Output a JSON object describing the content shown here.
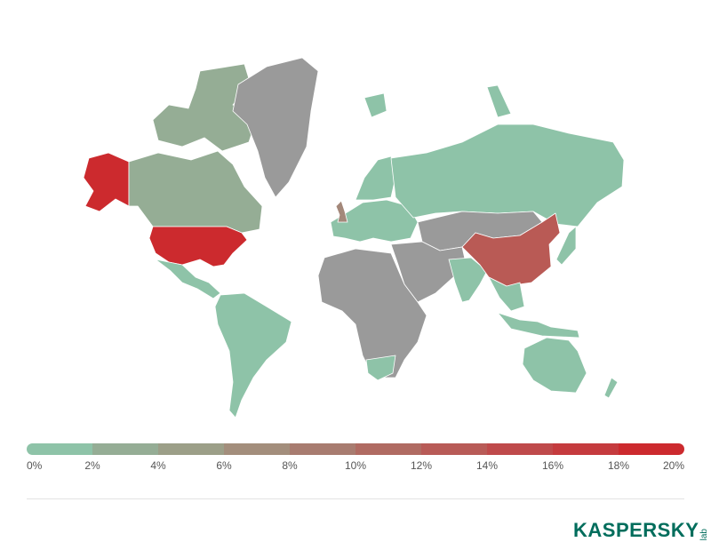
{
  "map": {
    "colors": {
      "low": "#8ec3a8",
      "no_data": "#9a9a9a",
      "high": "#cc2a2e"
    },
    "regions": [
      {
        "id": "usa",
        "color": "#cc2a2e"
      },
      {
        "id": "alaska",
        "color": "#cc2a2e"
      },
      {
        "id": "china",
        "color": "#b95a55"
      },
      {
        "id": "uk",
        "color": "#a3887a"
      },
      {
        "id": "canada",
        "color": "#95ad95"
      },
      {
        "id": "canada-arctic",
        "color": "#95ad95"
      },
      {
        "id": "greenland",
        "color": "#9a9a9a"
      },
      {
        "id": "mexico-central-america",
        "color": "#8ec3a8"
      },
      {
        "id": "south-america",
        "color": "#8ec3a8"
      },
      {
        "id": "europe",
        "color": "#8ec3a8"
      },
      {
        "id": "scandinavia",
        "color": "#8ec3a8"
      },
      {
        "id": "russia",
        "color": "#8ec3a8"
      },
      {
        "id": "kazakhstan-mongolia",
        "color": "#9a9a9a"
      },
      {
        "id": "middle-east",
        "color": "#9a9a9a"
      },
      {
        "id": "africa",
        "color": "#9a9a9a"
      },
      {
        "id": "south-africa",
        "color": "#8ec3a8"
      },
      {
        "id": "india",
        "color": "#8ec3a8"
      },
      {
        "id": "southeast-asia",
        "color": "#8ec3a8"
      },
      {
        "id": "japan",
        "color": "#8ec3a8"
      },
      {
        "id": "indonesia",
        "color": "#8ec3a8"
      },
      {
        "id": "australia",
        "color": "#8ec3a8"
      },
      {
        "id": "new-zealand",
        "color": "#8ec3a8"
      },
      {
        "id": "svalbard-novaya",
        "color": "#8ec3a8"
      }
    ]
  },
  "legend": {
    "labels": [
      "0%",
      "2%",
      "4%",
      "6%",
      "8%",
      "10%",
      "12%",
      "14%",
      "16%",
      "18%",
      "20%"
    ],
    "colors": [
      "#8ec3a8",
      "#95ad95",
      "#9c9f88",
      "#a38e7c",
      "#a87c70",
      "#b06b62",
      "#b85b57",
      "#bf4a4b",
      "#c53b3e",
      "#cc2a2e"
    ]
  },
  "logo": {
    "main": "KASPERSKY",
    "sub": "lab"
  }
}
